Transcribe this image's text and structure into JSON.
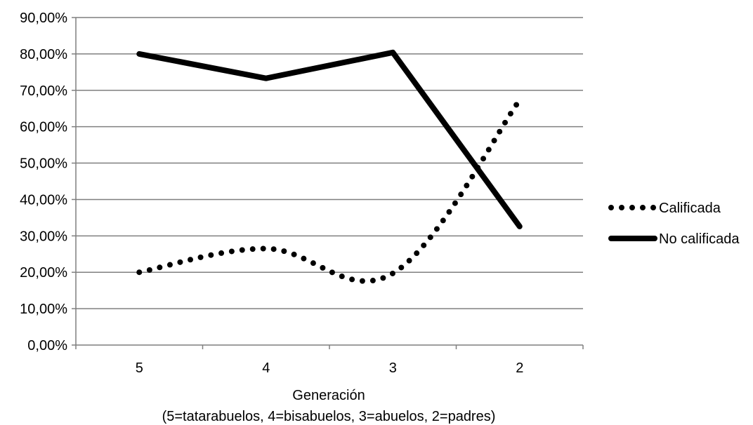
{
  "chart_data": {
    "type": "line",
    "title": "",
    "xlabel": "Generación",
    "xlabel_note": "(5=tatarabuelos, 4=bisabuelos, 3=abuelos, 2=padres)",
    "ylabel": "",
    "categories": [
      "5",
      "4",
      "3",
      "2"
    ],
    "ylim": [
      0,
      90
    ],
    "yticks": [
      0,
      10,
      20,
      30,
      40,
      50,
      60,
      70,
      80,
      90
    ],
    "ytick_labels": [
      "0,00%",
      "10,00%",
      "20,00%",
      "30,00%",
      "40,00%",
      "50,00%",
      "60,00%",
      "70,00%",
      "80,00%",
      "90,00%"
    ],
    "grid": true,
    "legend_position": "right",
    "series": [
      {
        "name": "Calificada",
        "values": [
          20.0,
          26.5,
          19.7,
          67.3
        ],
        "style": "dotted",
        "color": "#000000"
      },
      {
        "name": "No calificada",
        "values": [
          80.0,
          73.3,
          80.4,
          32.6
        ],
        "style": "solid",
        "color": "#000000"
      }
    ]
  }
}
